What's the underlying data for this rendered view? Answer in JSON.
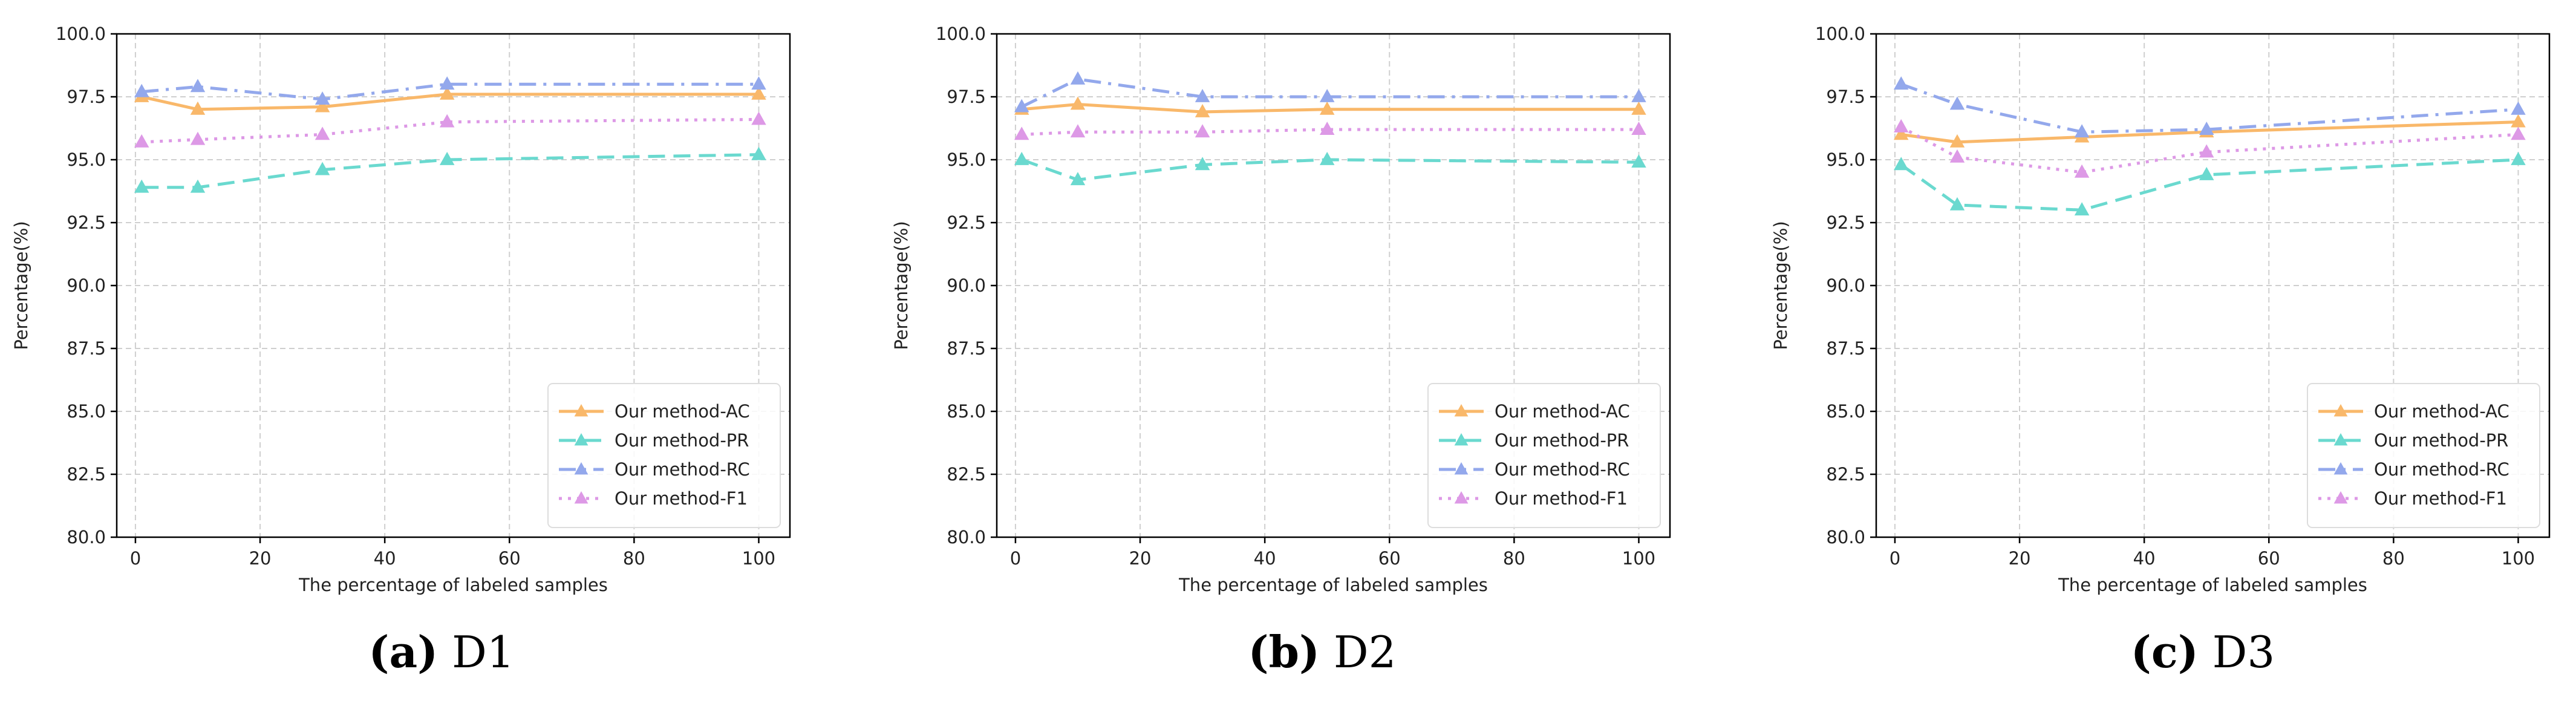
{
  "chart_data": [
    {
      "type": "line",
      "panel": "D1",
      "caption_letter": "(a)",
      "caption_text": "D1",
      "xlabel": "The percentage of labeled samples",
      "ylabel": "Percentage(%)",
      "xlim": [
        -3,
        105
      ],
      "ylim": [
        80,
        100
      ],
      "xticks": [
        0,
        20,
        40,
        60,
        80,
        100
      ],
      "yticks": [
        "80.0",
        "82.5",
        "85.0",
        "87.5",
        "90.0",
        "92.5",
        "95.0",
        "97.5",
        "100.0"
      ],
      "grid": true,
      "legend_position": "lower-right",
      "x": [
        1,
        10,
        30,
        50,
        100
      ],
      "series": [
        {
          "name": "Our method-AC",
          "values": [
            97.5,
            97.0,
            97.1,
            97.6,
            97.6
          ]
        },
        {
          "name": "Our method-PR",
          "values": [
            93.9,
            93.9,
            94.6,
            95.0,
            95.2
          ]
        },
        {
          "name": "Our method-RC",
          "values": [
            97.7,
            97.9,
            97.4,
            98.0,
            98.0
          ]
        },
        {
          "name": "Our method-F1",
          "values": [
            95.7,
            95.8,
            96.0,
            96.5,
            96.6
          ]
        }
      ]
    },
    {
      "type": "line",
      "panel": "D2",
      "caption_letter": "(b)",
      "caption_text": "D2",
      "xlabel": "The percentage of labeled samples",
      "ylabel": "Percentage(%)",
      "xlim": [
        -3,
        105
      ],
      "ylim": [
        80,
        100
      ],
      "xticks": [
        0,
        20,
        40,
        60,
        80,
        100
      ],
      "yticks": [
        "80.0",
        "82.5",
        "85.0",
        "87.5",
        "90.0",
        "92.5",
        "95.0",
        "97.5",
        "100.0"
      ],
      "grid": true,
      "legend_position": "lower-right",
      "x": [
        1,
        10,
        30,
        50,
        100
      ],
      "series": [
        {
          "name": "Our method-AC",
          "values": [
            97.0,
            97.2,
            96.9,
            97.0,
            97.0
          ]
        },
        {
          "name": "Our method-PR",
          "values": [
            95.0,
            94.2,
            94.8,
            95.0,
            94.9
          ]
        },
        {
          "name": "Our method-RC",
          "values": [
            97.1,
            98.2,
            97.5,
            97.5,
            97.5
          ]
        },
        {
          "name": "Our method-F1",
          "values": [
            96.0,
            96.1,
            96.1,
            96.2,
            96.2
          ]
        }
      ]
    },
    {
      "type": "line",
      "panel": "D3",
      "caption_letter": "(c)",
      "caption_text": "D3",
      "xlabel": "The percentage of labeled samples",
      "ylabel": "Percentage(%)",
      "xlim": [
        -3,
        105
      ],
      "ylim": [
        80,
        100
      ],
      "xticks": [
        0,
        20,
        40,
        60,
        80,
        100
      ],
      "yticks": [
        "80.0",
        "82.5",
        "85.0",
        "87.5",
        "90.0",
        "92.5",
        "95.0",
        "97.5",
        "100.0"
      ],
      "grid": true,
      "legend_position": "lower-right",
      "x": [
        1,
        10,
        30,
        50,
        100
      ],
      "series": [
        {
          "name": "Our method-AC",
          "values": [
            96.0,
            95.7,
            95.9,
            96.1,
            96.5
          ]
        },
        {
          "name": "Our method-PR",
          "values": [
            94.8,
            93.2,
            93.0,
            94.4,
            95.0
          ]
        },
        {
          "name": "Our method-RC",
          "values": [
            98.0,
            97.2,
            96.1,
            96.2,
            97.0
          ]
        },
        {
          "name": "Our method-F1",
          "values": [
            96.3,
            95.1,
            94.5,
            95.3,
            96.0
          ]
        }
      ]
    }
  ],
  "series_styles": [
    {
      "color": "#f9b86a",
      "dash": "none"
    },
    {
      "color": "#6ad9cf",
      "dash": "28,14"
    },
    {
      "color": "#93a8ec",
      "dash": "28,12,5,12"
    },
    {
      "color": "#dd99e6",
      "dash": "5,10"
    }
  ]
}
